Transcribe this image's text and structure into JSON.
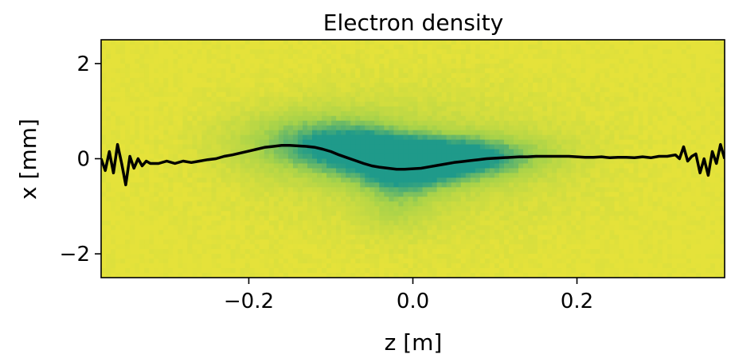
{
  "chart_data": {
    "type": "heatmap",
    "title": "Electron density",
    "xlabel": "z [m]",
    "ylabel": "x [mm]",
    "xlim": [
      -0.38,
      0.38
    ],
    "ylim": [
      -2.5,
      2.5
    ],
    "x_ticks": [
      -0.2,
      0.0,
      0.2
    ],
    "x_tick_labels": [
      "−0.2",
      "0.0",
      "0.2"
    ],
    "y_ticks": [
      -2,
      0,
      2
    ],
    "y_tick_labels": [
      "−2",
      "0",
      "2"
    ],
    "colormap": "viridis",
    "colors": {
      "background": "#e5e23a",
      "low_density": "#dfe13c",
      "mid_density": "#a6d24a",
      "high_density": "#1f9a8a",
      "line": "#000000"
    },
    "density_blobs": [
      {
        "z": -0.12,
        "x": 0.35,
        "sz": 0.07,
        "sx": 0.45,
        "amp": 0.55
      },
      {
        "z": -0.07,
        "x": 0.2,
        "sz": 0.05,
        "sx": 0.35,
        "amp": 0.55
      },
      {
        "z": 0.0,
        "x": -0.15,
        "sz": 0.05,
        "sx": 0.35,
        "amp": 0.85
      },
      {
        "z": 0.05,
        "x": 0.05,
        "sz": 0.05,
        "sx": 0.3,
        "amp": 0.65
      },
      {
        "z": 0.12,
        "x": 0.05,
        "sz": 0.05,
        "sx": 0.3,
        "amp": 0.35
      },
      {
        "z": -0.02,
        "x": -0.8,
        "sz": 0.03,
        "sx": 0.5,
        "amp": 0.3
      },
      {
        "z": 0.0,
        "x": 0.0,
        "sz": 0.15,
        "sx": 1.1,
        "amp": 0.25
      }
    ],
    "series": [
      {
        "type": "line",
        "x": [
          -0.38,
          -0.375,
          -0.37,
          -0.365,
          -0.36,
          -0.355,
          -0.35,
          -0.345,
          -0.34,
          -0.335,
          -0.33,
          -0.325,
          -0.32,
          -0.31,
          -0.3,
          -0.29,
          -0.28,
          -0.27,
          -0.26,
          -0.25,
          -0.24,
          -0.23,
          -0.22,
          -0.21,
          -0.2,
          -0.19,
          -0.18,
          -0.17,
          -0.16,
          -0.15,
          -0.14,
          -0.13,
          -0.12,
          -0.11,
          -0.1,
          -0.09,
          -0.08,
          -0.07,
          -0.06,
          -0.05,
          -0.04,
          -0.03,
          -0.02,
          -0.01,
          0.0,
          0.01,
          0.02,
          0.03,
          0.04,
          0.05,
          0.06,
          0.07,
          0.08,
          0.09,
          0.1,
          0.11,
          0.12,
          0.13,
          0.14,
          0.15,
          0.16,
          0.17,
          0.18,
          0.19,
          0.2,
          0.21,
          0.22,
          0.23,
          0.24,
          0.25,
          0.26,
          0.27,
          0.28,
          0.29,
          0.3,
          0.31,
          0.32,
          0.325,
          0.33,
          0.335,
          0.34,
          0.345,
          0.35,
          0.355,
          0.36,
          0.365,
          0.37,
          0.375,
          0.38
        ],
        "y": [
          0.0,
          -0.25,
          0.15,
          -0.3,
          0.3,
          -0.1,
          -0.55,
          0.05,
          -0.2,
          0.0,
          -0.15,
          -0.05,
          -0.1,
          -0.1,
          -0.05,
          -0.1,
          -0.05,
          -0.08,
          -0.05,
          -0.02,
          0.0,
          0.05,
          0.08,
          0.12,
          0.16,
          0.2,
          0.24,
          0.26,
          0.28,
          0.28,
          0.27,
          0.26,
          0.24,
          0.2,
          0.15,
          0.08,
          0.02,
          -0.04,
          -0.1,
          -0.15,
          -0.18,
          -0.2,
          -0.22,
          -0.22,
          -0.21,
          -0.2,
          -0.17,
          -0.14,
          -0.11,
          -0.08,
          -0.06,
          -0.04,
          -0.02,
          0.0,
          0.01,
          0.02,
          0.03,
          0.04,
          0.04,
          0.05,
          0.05,
          0.05,
          0.05,
          0.05,
          0.04,
          0.03,
          0.03,
          0.04,
          0.02,
          0.03,
          0.03,
          0.02,
          0.04,
          0.02,
          0.05,
          0.05,
          0.08,
          0.0,
          0.25,
          -0.05,
          0.05,
          0.1,
          -0.3,
          0.0,
          -0.35,
          0.15,
          -0.1,
          0.3,
          0.0
        ]
      }
    ]
  }
}
